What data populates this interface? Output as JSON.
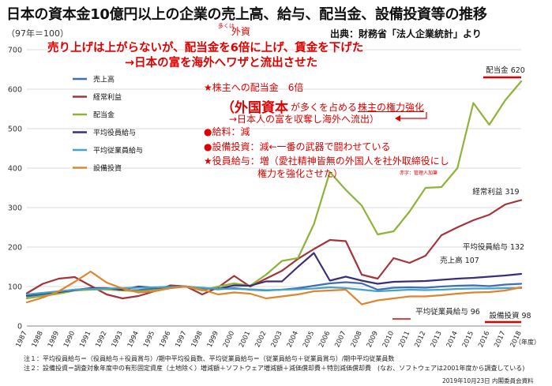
{
  "page": {
    "title": "日本の資本金10億円以上の企業の売上高、給与、配当金、設備投資等の推移",
    "y_unit": "（97年＝100）",
    "source": "出典：財務省「法人企業統計」より",
    "footnote1": "注１：平均役員給与＝（役員給与＋役員賞与）/期中平均役員数、平均従業員給与＝（従業員給与＋従業員賞与）/期中平均従業員数",
    "footnote2": "注２：設備投資＝調査対象年度中の有形固定資産（土地除く）増減額＋ソフトウェア増減額＋減価償却費＋特別減価償却費　(なお、ソフトウェアは2001年度から調査している)",
    "date_note": "2019年10月23日 内閣委員会資料"
  },
  "annotations": {
    "line1": "売り上げは上がらないが、配当金を6倍に上げ、賃金を下げた",
    "line2": "→日本の富を海外へワザと流出させた",
    "small_note_a": "多くは",
    "small_note_b": "外資",
    "note1": "★株主への配当金　6倍",
    "note2_big": "（外国資本",
    "note2_rest": "が多くを占める",
    "note2_tag": "株主の権力強化",
    "note3": "→日本人の富を収奪し海外へ流出）",
    "note4": "●給料：減",
    "note5": "●設備投資：減←一番の武器で闘わせている",
    "note6": "★役員給与：増（愛社精神皆無の外国人を社外取締役にし",
    "note7": "権力を強化させた）",
    "note8": "赤字：管理人加筆"
  },
  "chart_data": {
    "type": "line",
    "title": "日本の資本金10億円以上の企業の売上高、給与、配当金、設備投資等の推移",
    "xlabel": "（年度）",
    "ylabel": "（97年＝100）",
    "ylim": [
      0,
      700
    ],
    "yticks": [
      0,
      100,
      200,
      300,
      400,
      500,
      600,
      700
    ],
    "grid": true,
    "legend_position": "top-left",
    "x": [
      "1987",
      "1988",
      "1989",
      "1990",
      "1991",
      "1992",
      "1993",
      "1994",
      "1995",
      "1996",
      "1997",
      "1998",
      "1999",
      "2000",
      "2001",
      "2002",
      "2003",
      "2004",
      "2005",
      "2006",
      "2007",
      "2008",
      "2009",
      "2010",
      "2011",
      "2012",
      "2013",
      "2014",
      "2015",
      "2016",
      "2017",
      "2018"
    ],
    "series": [
      {
        "name": "売上高",
        "color": "#3e6fb5",
        "end_label": "売上高 107",
        "values": [
          75,
          80,
          87,
          92,
          95,
          93,
          90,
          91,
          95,
          98,
          100,
          96,
          93,
          96,
          92,
          90,
          92,
          96,
          102,
          108,
          111,
          108,
          92,
          97,
          98,
          97,
          100,
          102,
          103,
          101,
          105,
          107
        ]
      },
      {
        "name": "経常利益",
        "color": "#a3343c",
        "end_label": "経常利益 319",
        "values": [
          83,
          107,
          120,
          124,
          102,
          80,
          70,
          76,
          88,
          103,
          100,
          80,
          98,
          127,
          100,
          120,
          140,
          170,
          195,
          218,
          215,
          130,
          120,
          172,
          160,
          178,
          230,
          250,
          268,
          282,
          308,
          319
        ]
      },
      {
        "name": "配当金",
        "color": "#8fb339",
        "end_label": "配当金 620",
        "values": [
          70,
          76,
          82,
          90,
          92,
          93,
          90,
          88,
          90,
          96,
          100,
          90,
          100,
          108,
          102,
          130,
          165,
          172,
          258,
          390,
          345,
          305,
          232,
          240,
          290,
          350,
          352,
          400,
          565,
          510,
          572,
          620
        ]
      },
      {
        "name": "平均役員給与",
        "color": "#3b2f7a",
        "end_label": "平均役員給与 132",
        "values": [
          78,
          83,
          86,
          91,
          96,
          96,
          92,
          100,
          97,
          100,
          100,
          96,
          94,
          103,
          102,
          113,
          113,
          150,
          185,
          115,
          125,
          115,
          107,
          112,
          113,
          114,
          117,
          120,
          122,
          125,
          128,
          132
        ]
      },
      {
        "name": "平均従業員給与",
        "color": "#45a3c7",
        "end_label": "平均従業員給与 96",
        "values": [
          80,
          84,
          88,
          92,
          94,
          95,
          96,
          97,
          98,
          99,
          100,
          97,
          94,
          94,
          93,
          91,
          92,
          93,
          95,
          98,
          96,
          92,
          88,
          90,
          92,
          91,
          92,
          94,
          95,
          95,
          96,
          96
        ]
      },
      {
        "name": "設備投資",
        "color": "#e0842d",
        "end_label": "設備投資 98",
        "values": [
          60,
          72,
          88,
          112,
          138,
          110,
          95,
          85,
          88,
          96,
          100,
          92,
          80,
          85,
          82,
          70,
          75,
          80,
          88,
          90,
          92,
          55,
          65,
          70,
          75,
          75,
          78,
          82,
          85,
          86,
          90,
          98
        ]
      }
    ]
  }
}
